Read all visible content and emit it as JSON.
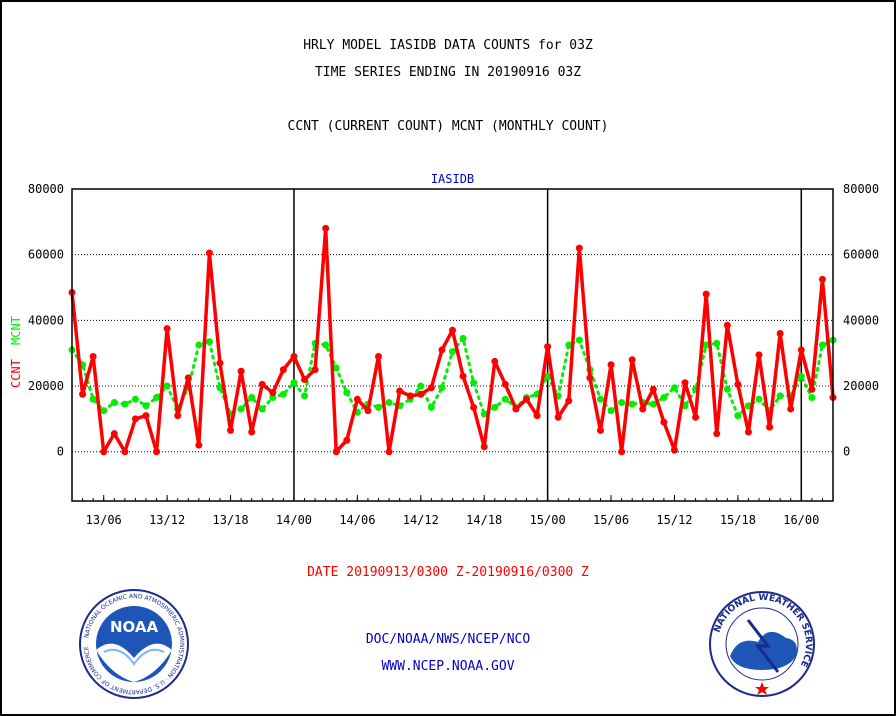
{
  "header": {
    "title_line1": "HRLY MODEL IASIDB DATA COUNTS for 03Z",
    "title_line2": "TIME SERIES ENDING IN 20190916 03Z",
    "title_line3": "CCNT (CURRENT COUNT) MCNT (MONTHLY COUNT)"
  },
  "footer": {
    "date_range": "DATE 20190913/0300 Z-20190916/0300 Z",
    "agency": "DOC/NOAA/NWS/NCEP/NCO",
    "website": "WWW.NCEP.NOAA.GOV",
    "noaa_logo_text": "NOAA",
    "noaa_ring_text": "NATIONAL OCEANIC AND ATMOSPHERIC ADMINISTRATION · U.S. DEPARTMENT OF COMMERCE",
    "nws_ring_text": "NATIONAL WEATHER SERVICE"
  },
  "colors": {
    "ccnt": "#ff0000",
    "mcnt": "#00ee00",
    "subtitle": "#0000cc",
    "footer_blue": "#0000cc",
    "date_red": "#ff0000"
  },
  "chart_data": {
    "type": "line",
    "subtitle": "IASIDB",
    "ylabel_ccnt": "CCNT",
    "ylabel_mcnt": "MCNT",
    "ylim": [
      -15000,
      80000
    ],
    "yticks": [
      0,
      20000,
      40000,
      60000,
      80000
    ],
    "ytick_labels": [
      "0",
      "20000",
      "40000",
      "60000",
      "80000"
    ],
    "xlim": [
      0,
      72
    ],
    "xticks": [
      3,
      9,
      15,
      21,
      27,
      33,
      39,
      45,
      51,
      57,
      63,
      69
    ],
    "xtick_labels": [
      "13/06",
      "13/12",
      "13/18",
      "14/00",
      "14/06",
      "14/12",
      "14/18",
      "15/00",
      "15/06",
      "15/12",
      "15/18",
      "16/00"
    ],
    "day_boundaries": [
      21,
      45,
      69
    ],
    "grid": true,
    "series": [
      {
        "name": "CCNT",
        "values": [
          48500,
          17500,
          29000,
          0,
          5500,
          0,
          10000,
          11000,
          0,
          37500,
          11000,
          22500,
          2000,
          60500,
          27000,
          6500,
          24500,
          6000,
          20500,
          18000,
          25000,
          29000,
          22000,
          25000,
          68000,
          0,
          3500,
          16000,
          12500,
          29000,
          0,
          18500,
          17000,
          17500,
          19500,
          31000,
          37000,
          23000,
          13500,
          1500,
          27500,
          20500,
          13000,
          16000,
          11000,
          32000,
          10500,
          15500,
          62000,
          22500,
          6500,
          26500,
          0,
          28000,
          13000,
          19000,
          9000,
          500,
          21000,
          10500,
          48000,
          5500,
          38500,
          20500,
          6000,
          29500,
          7500,
          36000,
          13000,
          31000,
          19000,
          52500,
          16500
        ]
      },
      {
        "name": "MCNT",
        "values": [
          31000,
          26500,
          16000,
          12500,
          15000,
          14500,
          16000,
          14000,
          16500,
          20000,
          13000,
          19500,
          32500,
          33500,
          19500,
          11500,
          13000,
          16500,
          13000,
          16500,
          17500,
          21000,
          17000,
          33000,
          32500,
          25500,
          18000,
          12000,
          14500,
          13500,
          15000,
          14000,
          16000,
          20000,
          13500,
          19500,
          30500,
          34500,
          21000,
          11500,
          13500,
          16000,
          13500,
          16500,
          17500,
          23000,
          17000,
          32500,
          34000,
          25000,
          16000,
          12500,
          15000,
          14500,
          15000,
          14500,
          16500,
          19500,
          14000,
          19000,
          32500,
          33000,
          19000,
          11000,
          14000,
          16000,
          12500,
          17000,
          17000,
          23000,
          16500,
          32500,
          34000
        ]
      }
    ]
  }
}
